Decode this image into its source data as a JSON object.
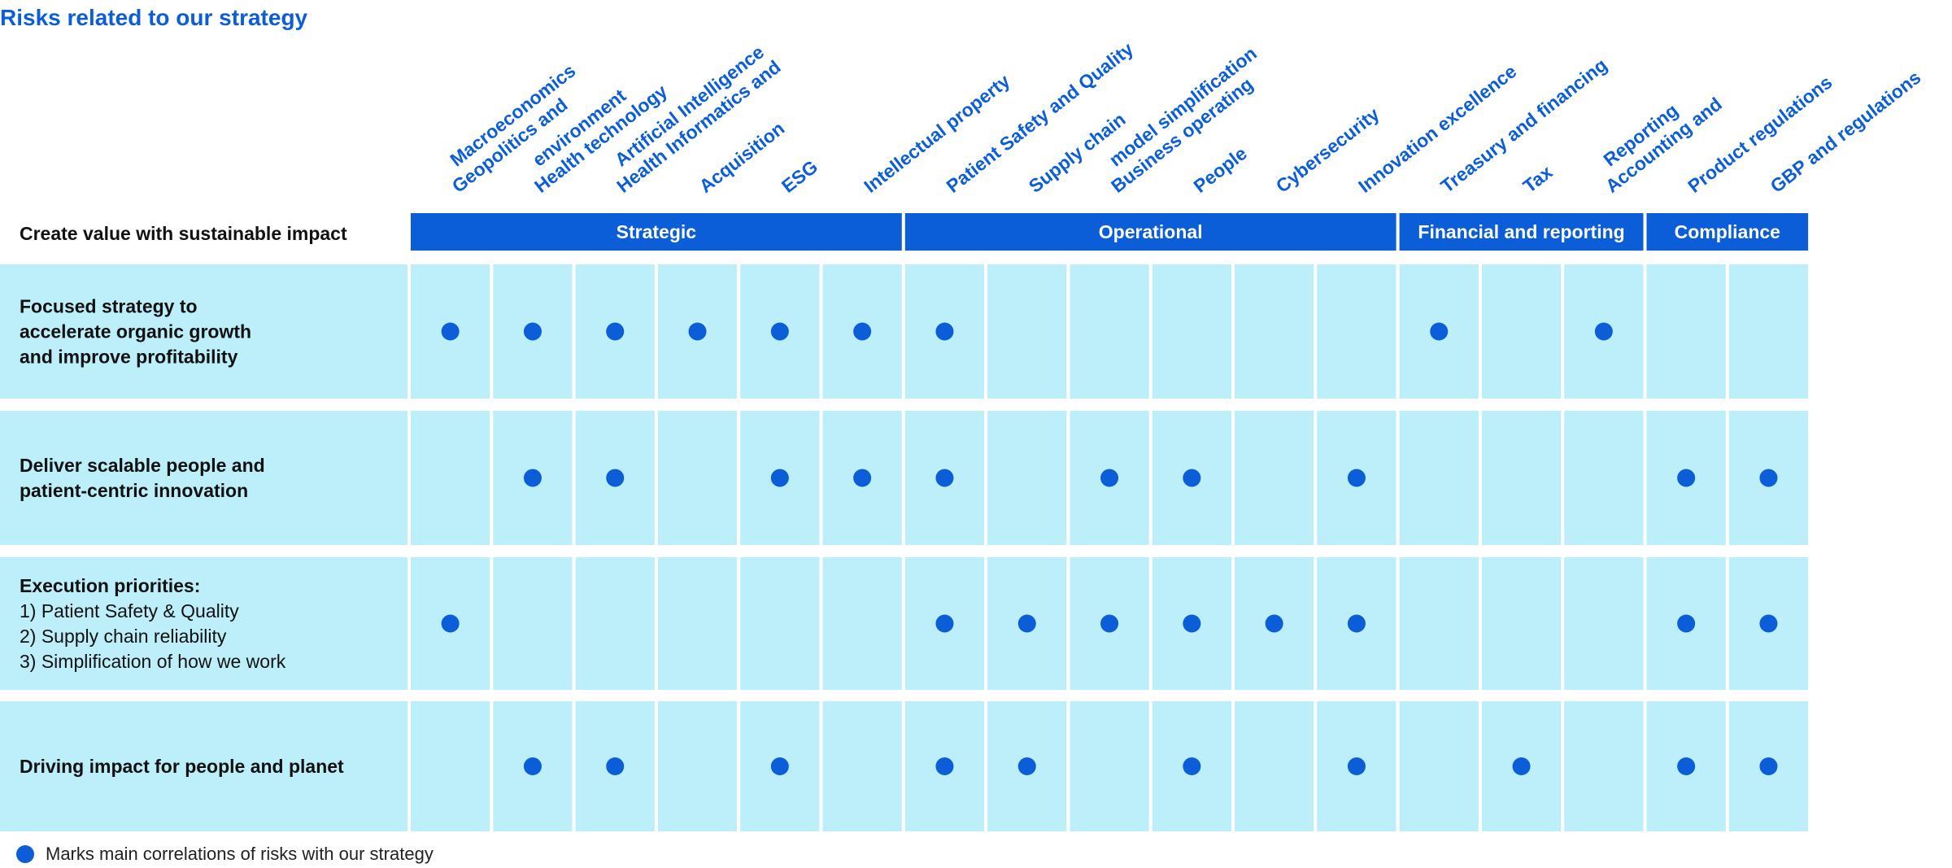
{
  "title": "Risks related to our strategy",
  "corner_label": "Create value with sustainable impact",
  "legend_text": "Marks main correlations of risks with our strategy",
  "colors": {
    "accent": "#0b5ed7",
    "cell": "#bdeffb",
    "dot": "#0b5ed7",
    "text": "#111111"
  },
  "risks": [
    [
      "Geopolitics and",
      "Macroeconomics"
    ],
    [
      "Health technology",
      "environment"
    ],
    [
      "Health Informatics and",
      "Artificial Intelligence"
    ],
    [
      "Acquisition"
    ],
    [
      "ESG"
    ],
    [
      "Intellectual property"
    ],
    [
      "Patient Safety and Quality"
    ],
    [
      "Supply chain"
    ],
    [
      "Business operating",
      "model simplification"
    ],
    [
      "People"
    ],
    [
      "Cybersecurity"
    ],
    [
      "Innovation excellence"
    ],
    [
      "Treasury and financing"
    ],
    [
      "Tax"
    ],
    [
      "Accounting and",
      "Reporting"
    ],
    [
      "Product regulations"
    ],
    [
      "GBP and regulations"
    ]
  ],
  "categories": [
    {
      "label": "Strategic",
      "span": 6
    },
    {
      "label": "Operational",
      "span": 6
    },
    {
      "label": "Financial and reporting",
      "span": 3
    },
    {
      "label": "Compliance",
      "span": 2
    }
  ],
  "rows": [
    {
      "lines": [
        "Focused strategy to",
        "accelerate organic growth",
        "and improve profitability"
      ],
      "bold": [
        true,
        true,
        true
      ],
      "marks": [
        1,
        1,
        1,
        1,
        1,
        1,
        1,
        0,
        0,
        0,
        0,
        0,
        1,
        0,
        1,
        0,
        0
      ]
    },
    {
      "lines": [
        "Deliver scalable people and",
        "patient-centric innovation"
      ],
      "bold": [
        true,
        true
      ],
      "marks": [
        0,
        1,
        1,
        0,
        1,
        1,
        1,
        0,
        1,
        1,
        0,
        1,
        0,
        0,
        0,
        1,
        1
      ]
    },
    {
      "lines": [
        "Execution priorities:",
        "1) Patient Safety & Quality",
        "2) Supply chain reliability",
        "3) Simplification of how we work"
      ],
      "bold": [
        true,
        false,
        false,
        false
      ],
      "marks": [
        1,
        0,
        0,
        0,
        0,
        0,
        1,
        1,
        1,
        1,
        1,
        1,
        0,
        0,
        0,
        1,
        1
      ]
    },
    {
      "lines": [
        "Driving impact for people and planet"
      ],
      "bold": [
        true
      ],
      "marks": [
        0,
        1,
        1,
        0,
        1,
        0,
        1,
        1,
        0,
        1,
        0,
        1,
        0,
        1,
        0,
        1,
        1
      ]
    }
  ]
}
